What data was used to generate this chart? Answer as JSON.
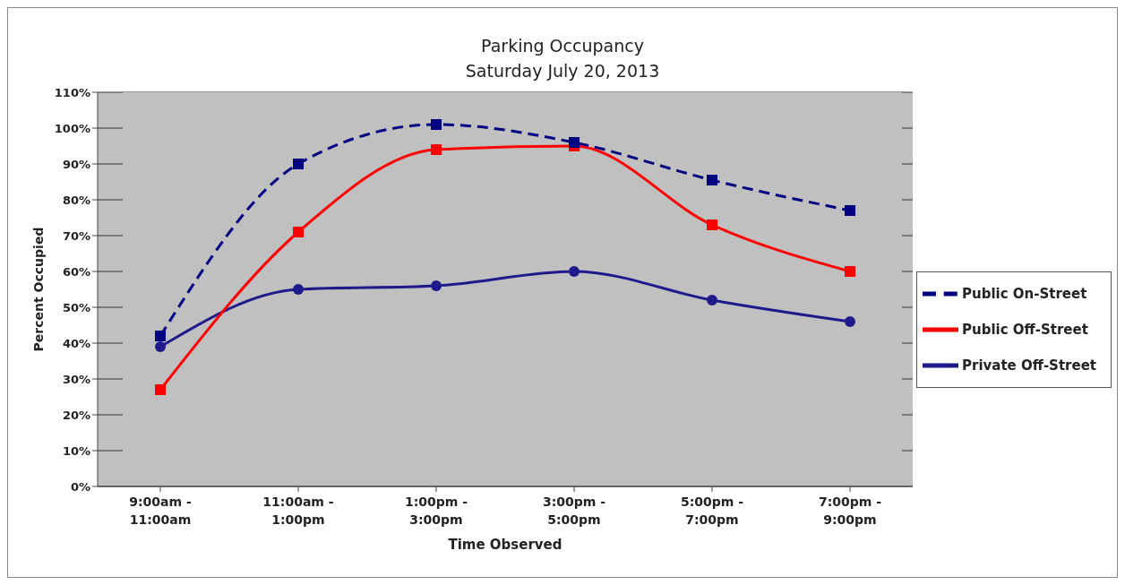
{
  "chart_data": {
    "type": "line",
    "title": "Parking Occupancy",
    "subtitle": "Saturday July 20, 2013",
    "xlabel": "Time Observed",
    "ylabel": "Percent Occupied",
    "categories": [
      "9:00am -\n11:00am",
      "11:00am -\n1:00pm",
      "1:00pm -\n3:00pm",
      "3:00pm -\n5:00pm",
      "5:00pm -\n7:00pm",
      "7:00pm -\n9:00pm"
    ],
    "series": [
      {
        "name": "Public On-Street",
        "color": "#000080",
        "values": [
          42,
          90,
          101,
          96,
          85.5,
          77
        ],
        "marker": "square",
        "line_style": "dashed"
      },
      {
        "name": "Public Off-Street",
        "color": "#ff0000",
        "values": [
          27,
          71,
          94,
          95,
          73,
          60
        ],
        "marker": "square",
        "line_style": "solid"
      },
      {
        "name": "Private Off-Street",
        "color": "#1f1a8c",
        "values": [
          39,
          55,
          56,
          60,
          52,
          46
        ],
        "marker": "circle",
        "line_style": "solid"
      }
    ],
    "ylim": [
      0,
      110
    ],
    "yticks": [
      {
        "value": 0,
        "label": "0%"
      },
      {
        "value": 10,
        "label": "10%"
      },
      {
        "value": 20,
        "label": "20%"
      },
      {
        "value": 30,
        "label": "30%"
      },
      {
        "value": 40,
        "label": "40%"
      },
      {
        "value": 50,
        "label": "50%"
      },
      {
        "value": 60,
        "label": "60%"
      },
      {
        "value": 70,
        "label": "70%"
      },
      {
        "value": 80,
        "label": "80%"
      },
      {
        "value": 90,
        "label": "90%"
      },
      {
        "value": 100,
        "label": "100%"
      },
      {
        "value": 110,
        "label": "110%"
      }
    ],
    "grid": "y",
    "legend": "right"
  }
}
